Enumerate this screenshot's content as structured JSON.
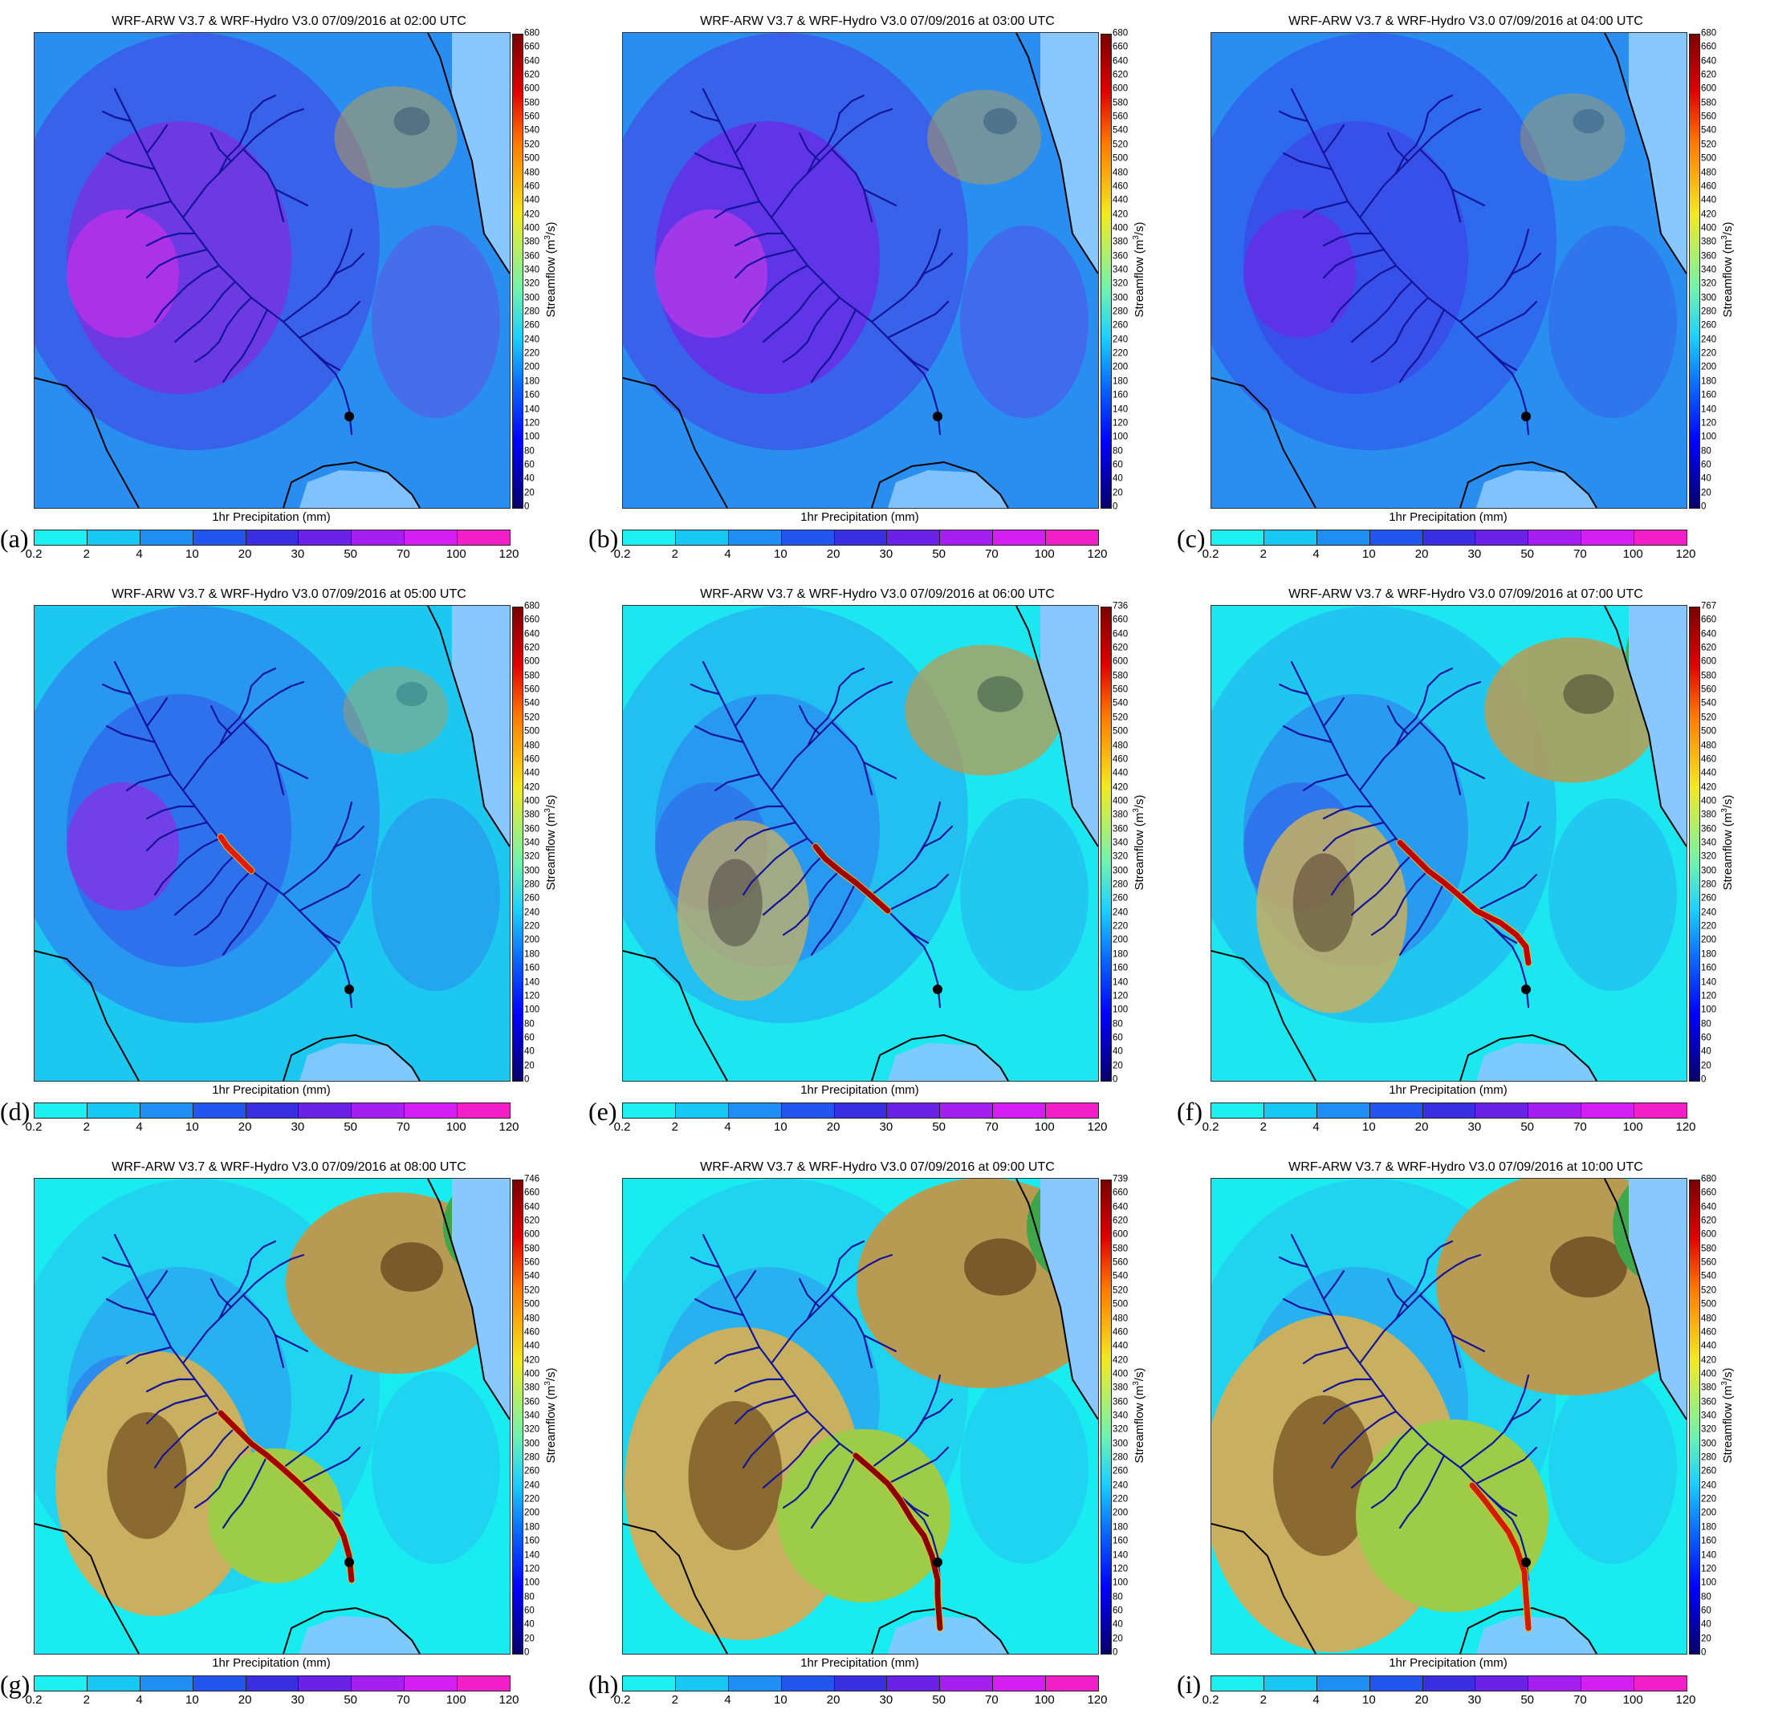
{
  "figure": {
    "panels": [
      {
        "letter": "(a)",
        "title": "WRF-ARW V3.7 & WRF-Hydro V3.0  07/09/2016 at 02:00 UTC",
        "sf_max": 680
      },
      {
        "letter": "(b)",
        "title": "WRF-ARW V3.7 & WRF-Hydro V3.0  07/09/2016 at 03:00 UTC",
        "sf_max": 680
      },
      {
        "letter": "(c)",
        "title": "WRF-ARW V3.7 & WRF-Hydro V3.0  07/09/2016 at 04:00 UTC",
        "sf_max": 680
      },
      {
        "letter": "(d)",
        "title": "WRF-ARW V3.7 & WRF-Hydro V3.0  07/09/2016 at 05:00 UTC",
        "sf_max": 680
      },
      {
        "letter": "(e)",
        "title": "WRF-ARW V3.7 & WRF-Hydro V3.0  07/09/2016 at 06:00 UTC",
        "sf_max": 736
      },
      {
        "letter": "(f)",
        "title": "WRF-ARW V3.7 & WRF-Hydro V3.0  07/09/2016 at 07:00 UTC",
        "sf_max": 767
      },
      {
        "letter": "(g)",
        "title": "WRF-ARW V3.7 & WRF-Hydro V3.0  07/09/2016 at 08:00 UTC",
        "sf_max": 746
      },
      {
        "letter": "(h)",
        "title": "WRF-ARW V3.7 & WRF-Hydro V3.0  07/09/2016 at 09:00 UTC",
        "sf_max": 739
      },
      {
        "letter": "(i)",
        "title": "WRF-ARW V3.7 & WRF-Hydro V3.0  07/09/2016 at 10:00 UTC",
        "sf_max": 680
      }
    ],
    "precip_label": "1hr Precipitation (mm)",
    "precip_ticks": [
      "0.2",
      "2",
      "4",
      "10",
      "20",
      "30",
      "50",
      "70",
      "100",
      "120"
    ],
    "precip_colors": [
      "#1cf0f0",
      "#18c8f4",
      "#1f8ff4",
      "#2255ee",
      "#3a2fe0",
      "#6a23e6",
      "#a51ff0",
      "#d31ff2",
      "#f21fc8"
    ],
    "streamflow_label": "Streamflow (m",
    "streamflow_label_sup": "3",
    "streamflow_label_end": "/s)",
    "streamflow_ticks": [
      "660",
      "640",
      "620",
      "600",
      "580",
      "560",
      "540",
      "520",
      "500",
      "480",
      "460",
      "440",
      "420",
      "400",
      "380",
      "360",
      "340",
      "320",
      "300",
      "280",
      "260",
      "240",
      "220",
      "200",
      "180",
      "160",
      "140",
      "120",
      "100",
      "80",
      "60",
      "40",
      "20",
      "0"
    ]
  }
}
